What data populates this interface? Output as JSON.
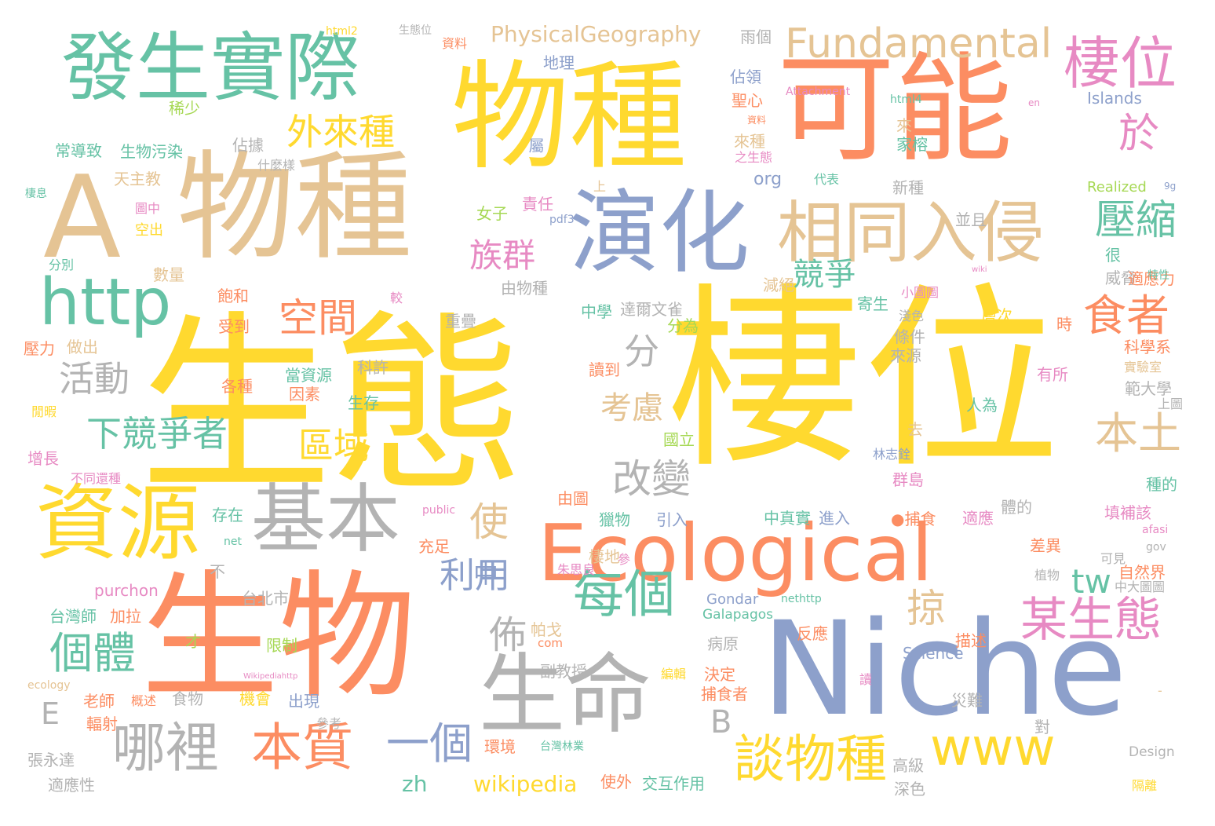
{
  "palette": {
    "yellow": "#ffd92f",
    "orange": "#fc8d62",
    "green": "#66c2a5",
    "blue": "#8da0cb",
    "tan": "#e5c494",
    "gray": "#b3b3b3",
    "pink": "#e78ac3",
    "lime": "#a6d854"
  },
  "words": [
    {
      "text": "生態",
      "color": "yellow",
      "weight": 1
    },
    {
      "text": "棲位",
      "color": "yellow",
      "weight": 0.98
    },
    {
      "text": "物種",
      "color": "yellow",
      "weight": 0.78
    },
    {
      "text": "物種",
      "color": "tan",
      "weight": 0.72
    },
    {
      "text": "可能",
      "color": "orange",
      "weight": 0.72
    },
    {
      "text": "生物",
      "color": "orange",
      "weight": 0.82
    },
    {
      "text": "Niche",
      "color": "blue",
      "weight": 0.7
    },
    {
      "text": "A",
      "color": "tan",
      "weight": 0.6
    },
    {
      "text": "Ecological",
      "color": "orange",
      "weight": 0.55
    },
    {
      "text": "演化",
      "color": "blue",
      "weight": 0.5
    },
    {
      "text": "生命",
      "color": "gray",
      "weight": 0.5
    },
    {
      "text": "資源",
      "color": "yellow",
      "weight": 0.45
    },
    {
      "text": "基本",
      "color": "gray",
      "weight": 0.45
    },
    {
      "text": "發生實際",
      "color": "green",
      "weight": 0.42
    },
    {
      "text": "相同入侵",
      "color": "tan",
      "weight": 0.4
    },
    {
      "text": "http",
      "color": "green",
      "weight": 0.38
    },
    {
      "text": "www",
      "color": "yellow",
      "weight": 0.3
    },
    {
      "text": "Fundamental",
      "color": "tan",
      "weight": 0.22
    },
    {
      "text": "棲位",
      "color": "pink",
      "weight": 0.28
    },
    {
      "text": "於",
      "color": "pink",
      "weight": 0.28
    },
    {
      "text": "外來種",
      "color": "yellow",
      "weight": 0.2
    },
    {
      "text": "壓縮",
      "color": "green",
      "weight": 0.22
    },
    {
      "text": "食者",
      "color": "orange",
      "weight": 0.22
    },
    {
      "text": "族群",
      "color": "pink",
      "weight": 0.2
    },
    {
      "text": "競爭",
      "color": "green",
      "weight": 0.18
    },
    {
      "text": "空間",
      "color": "orange",
      "weight": 0.2
    },
    {
      "text": "分",
      "color": "gray",
      "weight": 0.18
    },
    {
      "text": "活動",
      "color": "gray",
      "weight": 0.18
    },
    {
      "text": "考慮",
      "color": "tan",
      "weight": 0.18
    },
    {
      "text": "下競爭者",
      "color": "green",
      "weight": 0.2
    },
    {
      "text": "區域",
      "color": "yellow",
      "weight": 0.18
    },
    {
      "text": "本土",
      "color": "tan",
      "weight": 0.2
    },
    {
      "text": "改變",
      "color": "gray",
      "weight": 0.2
    },
    {
      "text": "使",
      "color": "tan",
      "weight": 0.18
    },
    {
      "text": "中",
      "color": "blue",
      "weight": 0.14
    },
    {
      "text": "利用",
      "color": "blue",
      "weight": 0.18
    },
    {
      "text": "tw",
      "color": "green",
      "weight": 0.14
    },
    {
      "text": "每個",
      "color": "green",
      "weight": 0.26
    },
    {
      "text": "掠",
      "color": "tan",
      "weight": 0.16
    },
    {
      "text": "某生態",
      "color": "pink",
      "weight": 0.24
    },
    {
      "text": "佈",
      "color": "gray",
      "weight": 0.16
    },
    {
      "text": "個體",
      "color": "green",
      "weight": 0.2
    },
    {
      "text": "E",
      "color": "gray",
      "weight": 0.14
    },
    {
      "text": "B",
      "color": "gray",
      "weight": 0.14
    },
    {
      "text": "哪裡",
      "color": "gray",
      "weight": 0.24
    },
    {
      "text": "本質",
      "color": "orange",
      "weight": 0.24
    },
    {
      "text": "一個",
      "color": "blue",
      "weight": 0.2
    },
    {
      "text": "談物種",
      "color": "yellow",
      "weight": 0.24
    },
    {
      "text": "zh",
      "color": "green",
      "weight": 0.1
    },
    {
      "text": "wikipedia",
      "color": "yellow",
      "weight": 0.1
    },
    {
      "text": "PhysicalGeography",
      "color": "tan",
      "weight": 0.1
    },
    {
      "text": "org",
      "color": "blue",
      "weight": 0.09
    },
    {
      "text": "Islands",
      "color": "blue",
      "weight": 0.08
    },
    {
      "text": "Realized",
      "color": "lime",
      "weight": 0.07
    },
    {
      "text": "Galapagos",
      "color": "green",
      "weight": 0.07
    },
    {
      "text": "Gondar",
      "color": "blue",
      "weight": 0.07
    },
    {
      "text": "Science",
      "color": "blue",
      "weight": 0.07
    },
    {
      "text": "Design",
      "color": "gray",
      "weight": 0.06
    },
    {
      "text": "purchon",
      "color": "pink",
      "weight": 0.07
    },
    {
      "text": "com",
      "color": "orange",
      "weight": 0.06
    },
    {
      "text": "net",
      "color": "green",
      "weight": 0.05
    },
    {
      "text": "ecology",
      "color": "tan",
      "weight": 0.05
    },
    {
      "text": "public",
      "color": "pink",
      "weight": 0.05
    },
    {
      "text": "Attachment",
      "color": "pink",
      "weight": 0.05
    },
    {
      "text": "html4",
      "color": "green",
      "weight": 0.05
    },
    {
      "text": "html2",
      "color": "yellow",
      "weight": 0.05
    },
    {
      "text": "pdf3",
      "color": "blue",
      "weight": 0.05
    },
    {
      "text": "nethttp",
      "color": "green",
      "weight": 0.05
    },
    {
      "text": "Wikipediahttp",
      "color": "pink",
      "weight": 0.04
    },
    {
      "text": "afasi",
      "color": "pink",
      "weight": 0.04
    },
    {
      "text": "gov",
      "color": "gray",
      "weight": 0.04
    },
    {
      "text": "wiki",
      "color": "pink",
      "weight": 0.03
    },
    {
      "text": "en",
      "color": "pink",
      "weight": 0.03
    },
    {
      "text": "9g",
      "color": "blue",
      "weight": 0.03
    },
    {
      "text": "雨個",
      "color": "gray",
      "weight": 0.06
    },
    {
      "text": "地理",
      "color": "blue",
      "weight": 0.06
    },
    {
      "text": "佔領",
      "color": "blue",
      "weight": 0.06
    },
    {
      "text": "聖心",
      "color": "orange",
      "weight": 0.06
    },
    {
      "text": "稀少",
      "color": "lime",
      "weight": 0.06
    },
    {
      "text": "常導致",
      "color": "green",
      "weight": 0.06
    },
    {
      "text": "生物污染",
      "color": "green",
      "weight": 0.06
    },
    {
      "text": "佔據",
      "color": "gray",
      "weight": 0.06
    },
    {
      "text": "什麼樣",
      "color": "gray",
      "weight": 0.05
    },
    {
      "text": "天主教",
      "color": "tan",
      "weight": 0.06
    },
    {
      "text": "女子",
      "color": "lime",
      "weight": 0.06
    },
    {
      "text": "責任",
      "color": "pink",
      "weight": 0.06
    },
    {
      "text": "屬",
      "color": "blue",
      "weight": 0.06
    },
    {
      "text": "圖中",
      "color": "pink",
      "weight": 0.05
    },
    {
      "text": "空出",
      "color": "yellow",
      "weight": 0.05
    },
    {
      "text": "數量",
      "color": "tan",
      "weight": 0.06
    },
    {
      "text": "分別",
      "color": "green",
      "weight": 0.05
    },
    {
      "text": "飽和",
      "color": "orange",
      "weight": 0.06
    },
    {
      "text": "較",
      "color": "pink",
      "weight": 0.05
    },
    {
      "text": "由物種",
      "color": "gray",
      "weight": 0.06
    },
    {
      "text": "重疊",
      "color": "gray",
      "weight": 0.06
    },
    {
      "text": "來種",
      "color": "tan",
      "weight": 0.06
    },
    {
      "text": "新種",
      "color": "gray",
      "weight": 0.06
    },
    {
      "text": "家榕",
      "color": "green",
      "weight": 0.06
    },
    {
      "text": "來",
      "color": "tan",
      "weight": 0.06
    },
    {
      "text": "代表",
      "color": "green",
      "weight": 0.05
    },
    {
      "text": "之生態",
      "color": "pink",
      "weight": 0.05
    },
    {
      "text": "上",
      "color": "tan",
      "weight": 0.05
    },
    {
      "text": "並且",
      "color": "gray",
      "weight": 0.06
    },
    {
      "text": "很",
      "color": "green",
      "weight": 0.06
    },
    {
      "text": "威脅",
      "color": "gray",
      "weight": 0.06
    },
    {
      "text": "適應力",
      "color": "orange",
      "weight": 0.06
    },
    {
      "text": "特性",
      "color": "green",
      "weight": 0.04
    },
    {
      "text": "減絕",
      "color": "tan",
      "weight": 0.06
    },
    {
      "text": "寄生",
      "color": "green",
      "weight": 0.06
    },
    {
      "text": "淺色",
      "color": "gray",
      "weight": 0.05
    },
    {
      "text": "小圖圖",
      "color": "pink",
      "weight": 0.05
    },
    {
      "text": "中學",
      "color": "green",
      "weight": 0.06
    },
    {
      "text": "達爾文雀",
      "color": "gray",
      "weight": 0.06
    },
    {
      "text": "受到",
      "color": "orange",
      "weight": 0.06
    },
    {
      "text": "做出",
      "color": "tan",
      "weight": 0.06
    },
    {
      "text": "壓力",
      "color": "orange",
      "weight": 0.06
    },
    {
      "text": "分為",
      "color": "lime",
      "weight": 0.06
    },
    {
      "text": "層次",
      "color": "yellow",
      "weight": 0.06
    },
    {
      "text": "時",
      "color": "orange",
      "weight": 0.06
    },
    {
      "text": "條件",
      "color": "gray",
      "weight": 0.06
    },
    {
      "text": "來源",
      "color": "gray",
      "weight": 0.06
    },
    {
      "text": "科學系",
      "color": "orange",
      "weight": 0.06
    },
    {
      "text": "實驗室",
      "color": "tan",
      "weight": 0.05
    },
    {
      "text": "讀到",
      "color": "orange",
      "weight": 0.06
    },
    {
      "text": "科許",
      "color": "gray",
      "weight": 0.06
    },
    {
      "text": "各種",
      "color": "orange",
      "weight": 0.05
    },
    {
      "text": "當資源",
      "color": "green",
      "weight": 0.06
    },
    {
      "text": "因素",
      "color": "orange",
      "weight": 0.06
    },
    {
      "text": "有所",
      "color": "pink",
      "weight": 0.05
    },
    {
      "text": "範大學",
      "color": "gray",
      "weight": 0.06
    },
    {
      "text": "閒暇",
      "color": "yellow",
      "weight": 0.05
    },
    {
      "text": "生存",
      "color": "green",
      "weight": 0.06
    },
    {
      "text": "人為",
      "color": "green",
      "weight": 0.06
    },
    {
      "text": "上圖",
      "color": "gray",
      "weight": 0.05
    },
    {
      "text": "增長",
      "color": "pink",
      "weight": 0.06
    },
    {
      "text": "國立",
      "color": "lime",
      "weight": 0.06
    },
    {
      "text": "去",
      "color": "tan",
      "weight": 0.06
    },
    {
      "text": "不同還種",
      "color": "pink",
      "weight": 0.05
    },
    {
      "text": "林志銓",
      "color": "blue",
      "weight": 0.05
    },
    {
      "text": "群島",
      "color": "pink",
      "weight": 0.06
    },
    {
      "text": "種的",
      "color": "green",
      "weight": 0.06
    },
    {
      "text": "由圖",
      "color": "orange",
      "weight": 0.06
    },
    {
      "text": "存在",
      "color": "green",
      "weight": 0.06
    },
    {
      "text": "獵物",
      "color": "green",
      "weight": 0.06
    },
    {
      "text": "引入",
      "color": "blue",
      "weight": 0.06
    },
    {
      "text": "中真實",
      "color": "green",
      "weight": 0.06
    },
    {
      "text": "進入",
      "color": "blue",
      "weight": 0.06
    },
    {
      "text": "●捕食",
      "color": "orange",
      "weight": 0.06
    },
    {
      "text": "適應",
      "color": "pink",
      "weight": 0.06
    },
    {
      "text": "體的",
      "color": "gray",
      "weight": 0.06
    },
    {
      "text": "填補該",
      "color": "pink",
      "weight": 0.06
    },
    {
      "text": "充足",
      "color": "orange",
      "weight": 0.06
    },
    {
      "text": "棲地",
      "color": "tan",
      "weight": 0.06
    },
    {
      "text": "不",
      "color": "gray",
      "weight": 0.06
    },
    {
      "text": "參",
      "color": "pink",
      "weight": 0.05
    },
    {
      "text": "差異",
      "color": "orange",
      "weight": 0.06
    },
    {
      "text": "植物",
      "color": "gray",
      "weight": 0.05
    },
    {
      "text": "自然界",
      "color": "orange",
      "weight": 0.06
    },
    {
      "text": "中大圖圖",
      "color": "gray",
      "weight": 0.05
    },
    {
      "text": "可見",
      "color": "gray",
      "weight": 0.05
    },
    {
      "text": "朱思良",
      "color": "pink",
      "weight": 0.05
    },
    {
      "text": "台北市",
      "color": "gray",
      "weight": 0.06
    },
    {
      "text": "台灣師",
      "color": "green",
      "weight": 0.06
    },
    {
      "text": "加拉",
      "color": "orange",
      "weight": 0.06
    },
    {
      "text": "帕戈",
      "color": "tan",
      "weight": 0.06
    },
    {
      "text": "反應",
      "color": "orange",
      "weight": 0.06
    },
    {
      "text": "描述",
      "color": "orange",
      "weight": 0.06
    },
    {
      "text": "才",
      "color": "lime",
      "weight": 0.06
    },
    {
      "text": "限制",
      "color": "lime",
      "weight": 0.06
    },
    {
      "text": "病原",
      "color": "gray",
      "weight": 0.06
    },
    {
      "text": "副教授",
      "color": "gray",
      "weight": 0.06
    },
    {
      "text": "編輯",
      "color": "yellow",
      "weight": 0.05
    },
    {
      "text": "決定",
      "color": "orange",
      "weight": 0.06
    },
    {
      "text": "捕食者",
      "color": "orange",
      "weight": 0.06
    },
    {
      "text": "讀",
      "color": "pink",
      "weight": 0.05
    },
    {
      "text": "老師",
      "color": "orange",
      "weight": 0.06
    },
    {
      "text": "概述",
      "color": "orange",
      "weight": 0.05
    },
    {
      "text": "食物",
      "color": "gray",
      "weight": 0.06
    },
    {
      "text": "機會",
      "color": "yellow",
      "weight": 0.06
    },
    {
      "text": "出現",
      "color": "blue",
      "weight": 0.06
    },
    {
      "text": "輻射",
      "color": "orange",
      "weight": 0.06
    },
    {
      "text": "參考",
      "color": "gray",
      "weight": 0.05
    },
    {
      "text": "災難",
      "color": "gray",
      "weight": 0.06
    },
    {
      "text": "對",
      "color": "gray",
      "weight": 0.06
    },
    {
      "text": "張永達",
      "color": "gray",
      "weight": 0.06
    },
    {
      "text": "環境",
      "color": "orange",
      "weight": 0.06
    },
    {
      "text": "台灣林業",
      "color": "green",
      "weight": 0.05
    },
    {
      "text": "高級",
      "color": "gray",
      "weight": 0.06
    },
    {
      "text": "適應性",
      "color": "gray",
      "weight": 0.06
    },
    {
      "text": "使外",
      "color": "orange",
      "weight": 0.06
    },
    {
      "text": "交互作用",
      "color": "green",
      "weight": 0.06
    },
    {
      "text": "深色",
      "color": "gray",
      "weight": 0.06
    },
    {
      "text": "隔離",
      "color": "yellow",
      "weight": 0.05
    },
    {
      "text": "資料",
      "color": "orange",
      "weight": 0.05
    },
    {
      "text": "生態位",
      "color": "gray",
      "weight": 0.04
    },
    {
      "text": "棲息",
      "color": "green",
      "weight": 0.04
    },
    {
      "text": "資料",
      "color": "orange",
      "weight": 0.03
    },
    {
      "text": "-",
      "color": "tan",
      "weight": 0.03
    }
  ]
}
